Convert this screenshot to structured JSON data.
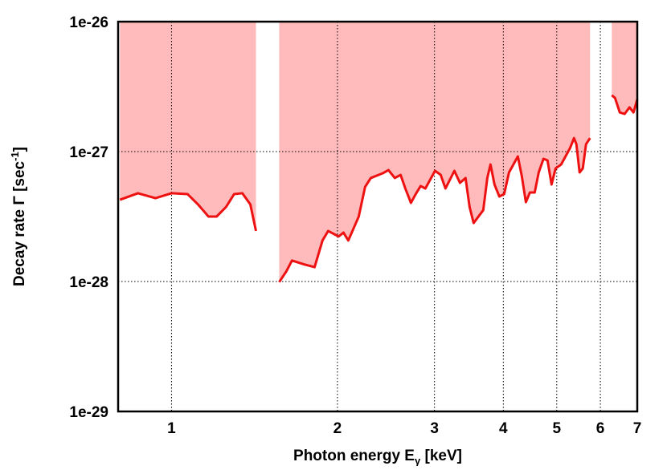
{
  "chart_data": {
    "type": "line",
    "xlog": true,
    "ylog": true,
    "grid": true,
    "xlabel": {
      "text": "Photon energy E",
      "sub": "γ",
      "end": " [keV]"
    },
    "ylabel": {
      "text": "Decay rate Γ [sec",
      "sup": "-1",
      "end": "]"
    },
    "xlim": [
      0.8,
      7
    ],
    "ylim": [
      1e-29,
      1e-26
    ],
    "xticks": [
      1,
      2,
      3,
      4,
      5,
      6,
      7
    ],
    "yticks": [
      {
        "value": 1e-29,
        "label": "1e-29"
      },
      {
        "value": 1e-28,
        "label": "1e-28"
      },
      {
        "value": 1e-27,
        "label": "1e-27"
      },
      {
        "value": 1e-26,
        "label": "1e-26"
      }
    ],
    "fill_color": "#ffbbbb",
    "series": [
      {
        "color": "#ee1111",
        "x": [
          0.806,
          0.869,
          0.935,
          1,
          1.069,
          1.117,
          1.167,
          1.207,
          1.256,
          1.299,
          1.344,
          1.39,
          1.423,
          1.5,
          1.568,
          1.616,
          1.654,
          1.746,
          1.818,
          1.879,
          1.924,
          2.01,
          2.051,
          2.093,
          2.186,
          2.245,
          2.299,
          2.417,
          2.475,
          2.542,
          2.604,
          2.656,
          2.719,
          2.774,
          2.831,
          2.888,
          3.007,
          3.079,
          3.141,
          3.26,
          3.337,
          3.416,
          3.474,
          3.533,
          3.678,
          3.741,
          3.791,
          3.855,
          3.934,
          4.014,
          4.096,
          4.25,
          4.322,
          4.395,
          4.469,
          4.56,
          4.637,
          4.731,
          4.811,
          4.893,
          4.976,
          5.093,
          5.284,
          5.374,
          5.428,
          5.501,
          5.575,
          5.651,
          5.747,
          6.0,
          6.293,
          6.378,
          6.508,
          6.641,
          6.776,
          6.89,
          7.0
        ],
        "values": [
          4.26e-28,
          4.78e-28,
          4.38e-28,
          4.78e-28,
          4.71e-28,
          3.92e-28,
          3.16e-28,
          3.16e-28,
          3.75e-28,
          4.71e-28,
          4.78e-28,
          3.92e-28,
          2.45e-28,
          null,
          9.9e-29,
          1.2e-28,
          1.45e-28,
          1.35e-28,
          1.29e-28,
          2.07e-28,
          2.45e-28,
          2.22e-28,
          2.38e-28,
          2.07e-28,
          3.16e-28,
          5.35e-28,
          6.26e-28,
          6.81e-28,
          7.21e-28,
          6.26e-28,
          6.62e-28,
          5.2e-28,
          4.03e-28,
          4.71e-28,
          5.43e-28,
          5.2e-28,
          7.11e-28,
          6.62e-28,
          5.2e-28,
          7.11e-28,
          5.74e-28,
          6.26e-28,
          3.75e-28,
          2.82e-28,
          3.54e-28,
          6.26e-28,
          7.96e-28,
          5.58e-28,
          4.51e-28,
          4.71e-28,
          6.91e-28,
          9.18e-28,
          6.44e-28,
          4.08e-28,
          4.84e-28,
          4.84e-28,
          6.91e-28,
          8.8e-28,
          8.55e-28,
          5.58e-28,
          7.42e-28,
          7.96e-28,
          1.06e-27,
          1.27e-27,
          1.14e-27,
          6.91e-28,
          7.42e-28,
          1.14e-27,
          1.27e-27,
          null,
          2.71e-27,
          2.59e-27,
          2e-27,
          1.95e-27,
          2.19e-27,
          2e-27,
          2.52e-27
        ]
      }
    ]
  }
}
